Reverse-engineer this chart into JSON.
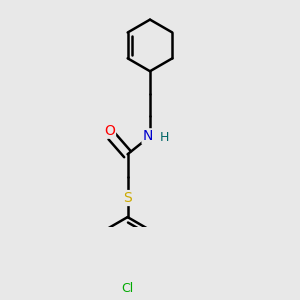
{
  "bg_color": "#e8e8e8",
  "bond_color": "#000000",
  "bond_width": 1.8,
  "atom_colors": {
    "O": "#ff0000",
    "N": "#0000cc",
    "S": "#ccaa00",
    "Cl": "#00aa00",
    "H": "#006666"
  },
  "font_size": 9,
  "figsize": [
    3.0,
    3.0
  ],
  "dpi": 100
}
